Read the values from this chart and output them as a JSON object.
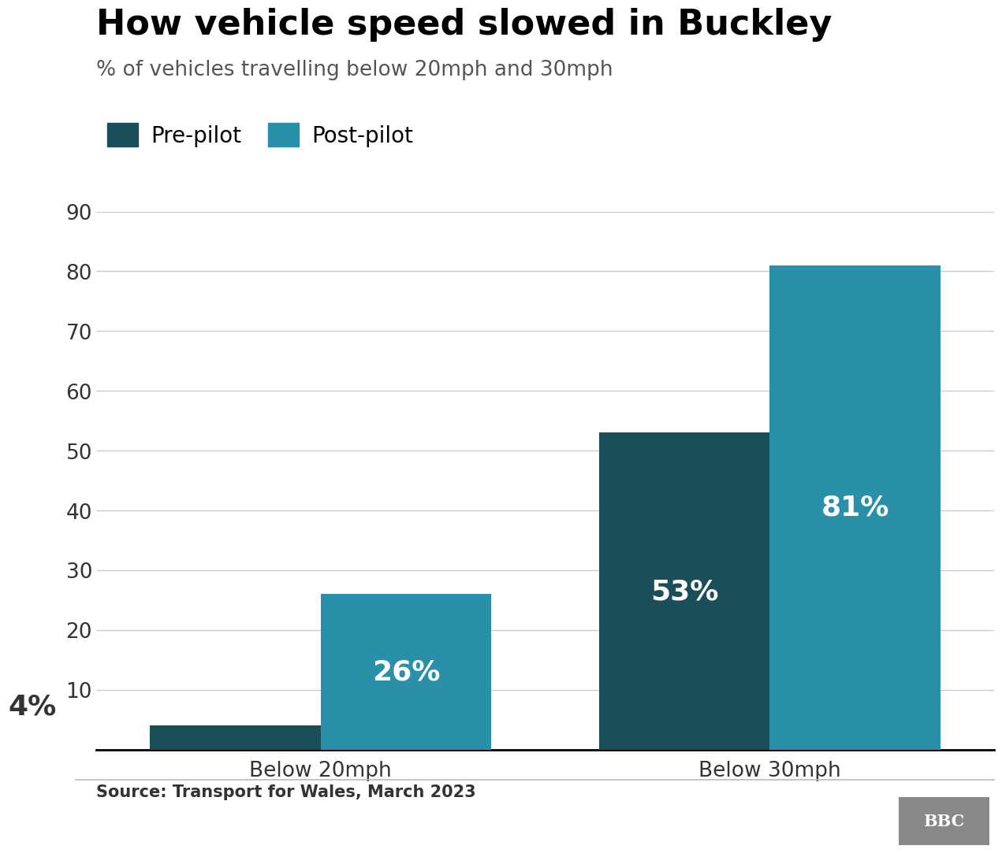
{
  "title": "How vehicle speed slowed in Buckley",
  "subtitle": "% of vehicles travelling below 20mph and 30mph",
  "source": "Source: Transport for Wales, March 2023",
  "categories": [
    "Below 20mph",
    "Below 30mph"
  ],
  "pre_pilot_values": [
    4,
    53
  ],
  "post_pilot_values": [
    26,
    81
  ],
  "pre_pilot_color": "#1a4f5a",
  "post_pilot_color": "#2a8fa8",
  "ylim": [
    0,
    90
  ],
  "yticks": [
    0,
    10,
    20,
    30,
    40,
    50,
    60,
    70,
    80,
    90
  ],
  "legend_labels": [
    "Pre-pilot",
    "Post-pilot"
  ],
  "bar_width": 0.38,
  "title_fontsize": 32,
  "subtitle_fontsize": 19,
  "axis_tick_fontsize": 19,
  "legend_fontsize": 20,
  "source_fontsize": 15,
  "background_color": "#ffffff",
  "grid_color": "#cccccc",
  "value_label_color": "#ffffff",
  "value_label_fontsize_large": 26,
  "value_label_fontsize_small": 22,
  "axis_label_color": "#333333",
  "bbc_bg_color": "#888888",
  "separator_color": "#bbbbbb"
}
